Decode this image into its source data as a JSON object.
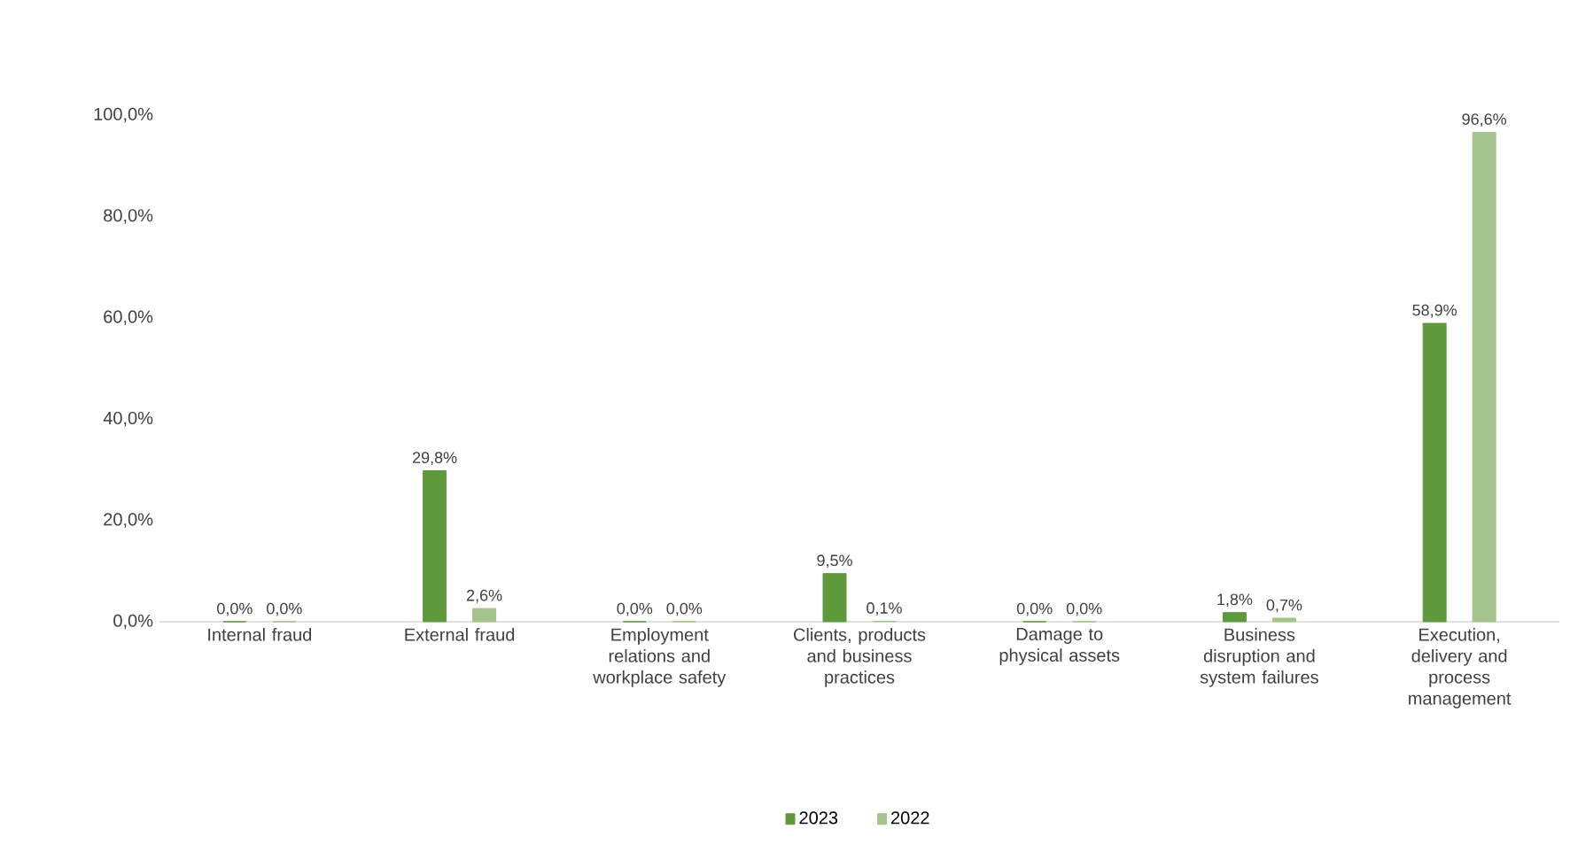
{
  "chart_data": {
    "type": "bar",
    "categories": [
      "Internal fraud",
      "External fraud",
      "Employment relations and workplace safety",
      "Clients, products and business practices",
      "Damage to physical assets",
      "Business disruption and system failures",
      "Execution, delivery and process management"
    ],
    "series": [
      {
        "name": "2023",
        "color": "#5e9a3c",
        "values": [
          0,
          29.8,
          0,
          9.5,
          0,
          1.8,
          58.9
        ],
        "value_labels": [
          "0,0%",
          "29,8%",
          "0,0%",
          "9,5%",
          "0,0%",
          "1,8%",
          "58,9%"
        ]
      },
      {
        "name": "2022",
        "color": "#a3c48a",
        "values": [
          0,
          2.6,
          0,
          0.1,
          0,
          0.7,
          96.6
        ],
        "value_labels": [
          "0,0%",
          "2,6%",
          "0,0%",
          "0,1%",
          "0,0%",
          "0,7%",
          "96,6%"
        ]
      }
    ],
    "ylim": [
      0,
      100
    ],
    "yticks": [
      {
        "value": 0,
        "label": "0,0%"
      },
      {
        "value": 20,
        "label": "20,0%"
      },
      {
        "value": 40,
        "label": "40,0%"
      },
      {
        "value": 60,
        "label": "60,0%"
      },
      {
        "value": 80,
        "label": "80,0%"
      },
      {
        "value": 100,
        "label": "100,0%"
      }
    ],
    "legend": "bottom"
  }
}
